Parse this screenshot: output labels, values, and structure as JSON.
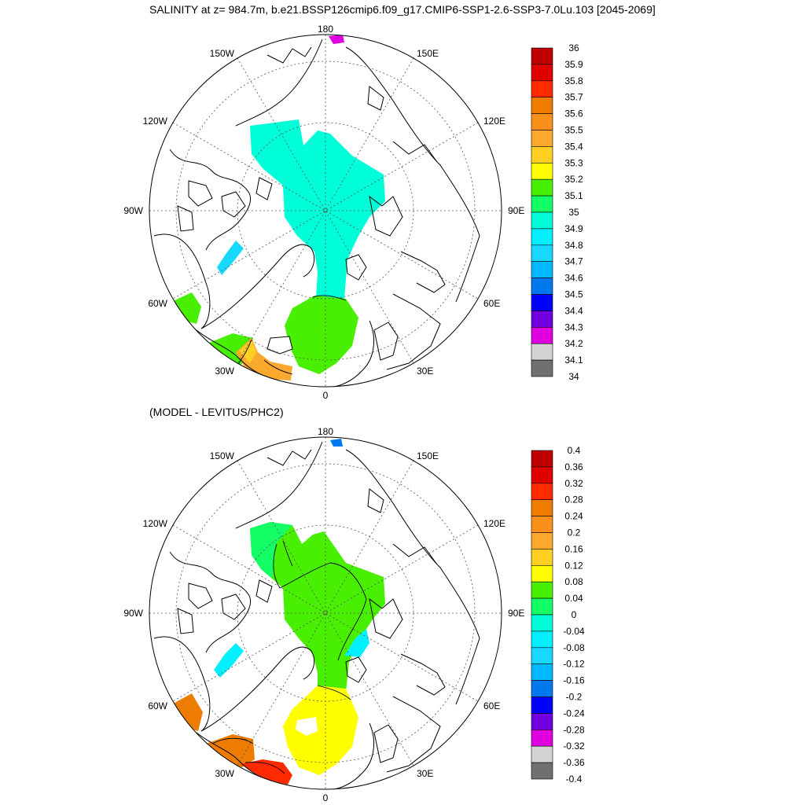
{
  "title": "SALINITY at z= 984.7m, b.e21.BSSP126cmip6.f09_g17.CMIP6-SSP1-2.6-SSP3-7.0Lu.103 [2045-2069]",
  "subtitle": "(MODEL - LEVITUS/PHC2)",
  "longitude_labels": {
    "top": "180",
    "bottom": "0",
    "left_mid": "90W",
    "right_mid": "90E",
    "upper_left": "150W",
    "upper_right": "150E",
    "left_upper": "120W",
    "right_upper": "120E",
    "left_lower": "60W",
    "right_lower": "60E",
    "lower_left": "30W",
    "lower_right": "30E"
  },
  "colorbar_top": {
    "labels": [
      "36",
      "35.9",
      "35.8",
      "35.7",
      "35.6",
      "35.5",
      "35.4",
      "35.3",
      "35.2",
      "35.1",
      "35",
      "34.9",
      "34.8",
      "34.7",
      "34.6",
      "34.5",
      "34.4",
      "34.3",
      "34.2",
      "34.1",
      "34"
    ],
    "colors": [
      "#bf0000",
      "#e00000",
      "#ff2a00",
      "#ee7c00",
      "#f8901a",
      "#fba82f",
      "#ffcf24",
      "#ffff00",
      "#48f000",
      "#14ff66",
      "#00ffd8",
      "#00f0ff",
      "#18d8ff",
      "#00b8ff",
      "#0078f0",
      "#0000ff",
      "#7000e0",
      "#e000e0",
      "#d2d2d2",
      "#707070"
    ]
  },
  "colorbar_bottom": {
    "labels": [
      "0.4",
      "0.36",
      "0.32",
      "0.28",
      "0.24",
      "0.2",
      "0.16",
      "0.12",
      "0.08",
      "0.04",
      "0",
      "-0.04",
      "-0.08",
      "-0.12",
      "-0.16",
      "-0.2",
      "-0.24",
      "-0.28",
      "-0.32",
      "-0.36",
      "-0.4"
    ],
    "colors": [
      "#bf0000",
      "#e00000",
      "#ff2a00",
      "#ee7c00",
      "#f8901a",
      "#fba82f",
      "#ffcf24",
      "#ffff00",
      "#48f000",
      "#14ff66",
      "#00ffd8",
      "#00f0ff",
      "#18d8ff",
      "#00b8ff",
      "#0078f0",
      "#0000ff",
      "#7000e0",
      "#e000e0",
      "#d2d2d2",
      "#707070"
    ]
  },
  "field_colors": {
    "top_arctic": "#00ffd8",
    "top_nordic": "#48f000",
    "top_baffin": "#18d8ff",
    "top_labrador": "#48f000",
    "top_iceland_warm": "#fba82f",
    "top_iceland_yellow": "#ffcf24",
    "top_bering": "#e000e0",
    "bottom_arctic": "#48f000",
    "bottom_arctic_edge": "#14ff66",
    "bottom_nordic": "#ffff00",
    "bottom_baffin": "#00f0ff",
    "bottom_labrador": "#ee7c00",
    "bottom_iceland": "#ee7c00",
    "bottom_iceland_red": "#ff2a00",
    "bottom_bering": "#0078f0"
  }
}
